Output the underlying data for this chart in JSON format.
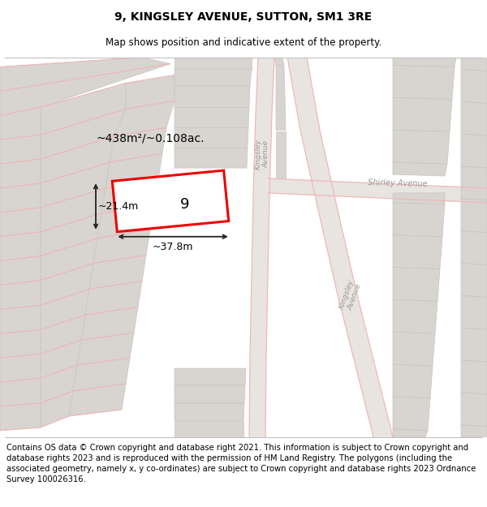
{
  "title": "9, KINGSLEY AVENUE, SUTTON, SM1 3RE",
  "subtitle": "Map shows position and indicative extent of the property.",
  "footer": "Contains OS data © Crown copyright and database right 2021. This information is subject to Crown copyright and database rights 2023 and is reproduced with the permission of HM Land Registry. The polygons (including the associated geometry, namely x, y co-ordinates) are subject to Crown copyright and database rights 2023 Ordnance Survey 100026316.",
  "bg_color": "#ffffff",
  "map_bg": "#f0eeea",
  "title_fontsize": 10,
  "subtitle_fontsize": 8.5,
  "footer_fontsize": 7.2,
  "area_label": "~438m²/~0.108ac.",
  "width_label": "~37.8m",
  "height_label": "~21.4m",
  "number_label": "9",
  "road_color": "#f0b8b8",
  "block_fill": "#d8d5d0",
  "block_edge": "#c8c5c0",
  "road_fill": "#e8e4e0",
  "red_outline": "#ee0000",
  "highlight_fill": "#ffffff",
  "dim_color": "#222222",
  "label_color": "#999999"
}
